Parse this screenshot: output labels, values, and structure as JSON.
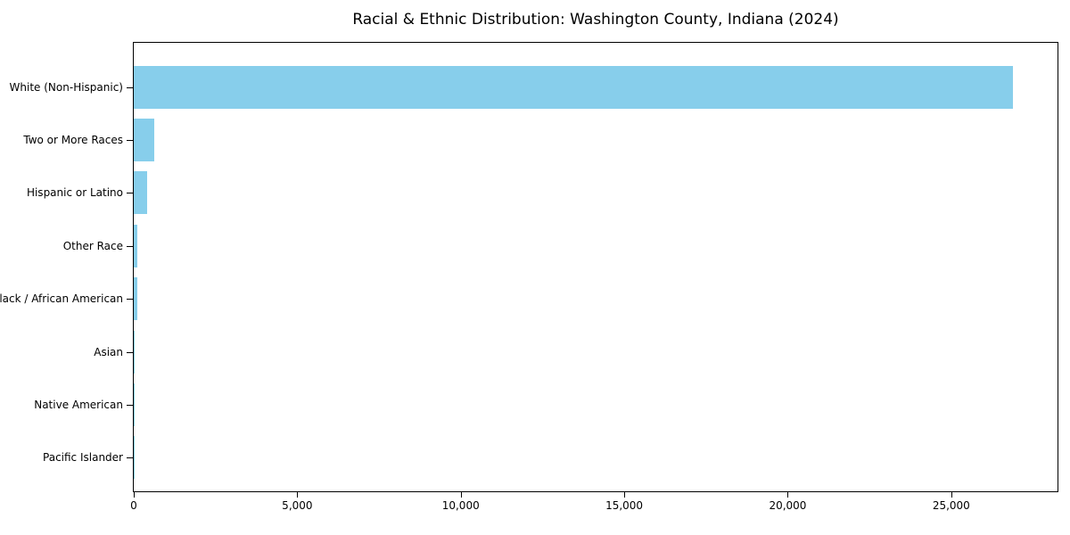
{
  "chart_data": {
    "type": "bar",
    "orientation": "horizontal",
    "title": "Racial & Ethnic Distribution: Washington County, Indiana (2024)",
    "categories": [
      "White (Non-Hispanic)",
      "Two or More Races",
      "Hispanic or Latino",
      "Other Race",
      "Black / African American",
      "Asian",
      "Native American",
      "Pacific Islander"
    ],
    "values": [
      26880,
      630,
      410,
      120,
      105,
      30,
      15,
      5
    ],
    "xlabel": "",
    "ylabel": "",
    "xlim": [
      0,
      28250
    ],
    "x_ticks": [
      0,
      5000,
      10000,
      15000,
      20000,
      25000
    ],
    "x_tick_labels": [
      "0",
      "5,000",
      "10,000",
      "15,000",
      "20,000",
      "25,000"
    ],
    "bar_color": "#87CEEB",
    "spine_color": "#000000",
    "text_color": "#000000",
    "grid": false,
    "legend_position": "none",
    "categories_sorted": "descending, largest on top"
  }
}
